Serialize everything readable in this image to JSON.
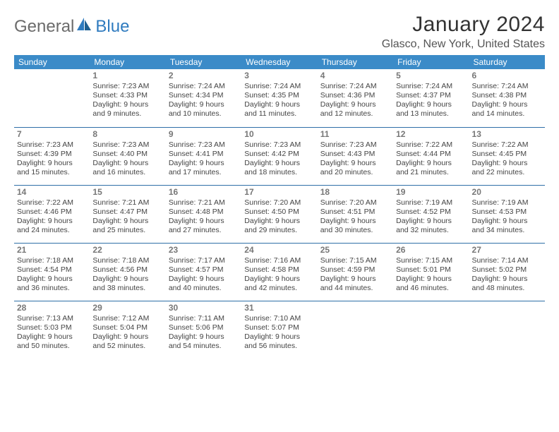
{
  "brand": {
    "part1": "General",
    "part2": "Blue"
  },
  "title": "January 2024",
  "location": "Glasco, New York, United States",
  "header_bg": "#3b8bc8",
  "header_fg": "#ffffff",
  "row_border": "#2f6fa8",
  "text_color": "#444444",
  "daynum_color": "#777777",
  "font_family": "Arial, Helvetica, sans-serif",
  "cell_fontsize_pt": 8,
  "header_fontsize_pt": 9,
  "title_fontsize_pt": 22,
  "location_fontsize_pt": 12,
  "day_headers": [
    "Sunday",
    "Monday",
    "Tuesday",
    "Wednesday",
    "Thursday",
    "Friday",
    "Saturday"
  ],
  "weeks": [
    [
      {
        "n": "",
        "sr": "",
        "ss": "",
        "d1": "",
        "d2": ""
      },
      {
        "n": "1",
        "sr": "Sunrise: 7:23 AM",
        "ss": "Sunset: 4:33 PM",
        "d1": "Daylight: 9 hours",
        "d2": "and 9 minutes."
      },
      {
        "n": "2",
        "sr": "Sunrise: 7:24 AM",
        "ss": "Sunset: 4:34 PM",
        "d1": "Daylight: 9 hours",
        "d2": "and 10 minutes."
      },
      {
        "n": "3",
        "sr": "Sunrise: 7:24 AM",
        "ss": "Sunset: 4:35 PM",
        "d1": "Daylight: 9 hours",
        "d2": "and 11 minutes."
      },
      {
        "n": "4",
        "sr": "Sunrise: 7:24 AM",
        "ss": "Sunset: 4:36 PM",
        "d1": "Daylight: 9 hours",
        "d2": "and 12 minutes."
      },
      {
        "n": "5",
        "sr": "Sunrise: 7:24 AM",
        "ss": "Sunset: 4:37 PM",
        "d1": "Daylight: 9 hours",
        "d2": "and 13 minutes."
      },
      {
        "n": "6",
        "sr": "Sunrise: 7:24 AM",
        "ss": "Sunset: 4:38 PM",
        "d1": "Daylight: 9 hours",
        "d2": "and 14 minutes."
      }
    ],
    [
      {
        "n": "7",
        "sr": "Sunrise: 7:23 AM",
        "ss": "Sunset: 4:39 PM",
        "d1": "Daylight: 9 hours",
        "d2": "and 15 minutes."
      },
      {
        "n": "8",
        "sr": "Sunrise: 7:23 AM",
        "ss": "Sunset: 4:40 PM",
        "d1": "Daylight: 9 hours",
        "d2": "and 16 minutes."
      },
      {
        "n": "9",
        "sr": "Sunrise: 7:23 AM",
        "ss": "Sunset: 4:41 PM",
        "d1": "Daylight: 9 hours",
        "d2": "and 17 minutes."
      },
      {
        "n": "10",
        "sr": "Sunrise: 7:23 AM",
        "ss": "Sunset: 4:42 PM",
        "d1": "Daylight: 9 hours",
        "d2": "and 18 minutes."
      },
      {
        "n": "11",
        "sr": "Sunrise: 7:23 AM",
        "ss": "Sunset: 4:43 PM",
        "d1": "Daylight: 9 hours",
        "d2": "and 20 minutes."
      },
      {
        "n": "12",
        "sr": "Sunrise: 7:22 AM",
        "ss": "Sunset: 4:44 PM",
        "d1": "Daylight: 9 hours",
        "d2": "and 21 minutes."
      },
      {
        "n": "13",
        "sr": "Sunrise: 7:22 AM",
        "ss": "Sunset: 4:45 PM",
        "d1": "Daylight: 9 hours",
        "d2": "and 22 minutes."
      }
    ],
    [
      {
        "n": "14",
        "sr": "Sunrise: 7:22 AM",
        "ss": "Sunset: 4:46 PM",
        "d1": "Daylight: 9 hours",
        "d2": "and 24 minutes."
      },
      {
        "n": "15",
        "sr": "Sunrise: 7:21 AM",
        "ss": "Sunset: 4:47 PM",
        "d1": "Daylight: 9 hours",
        "d2": "and 25 minutes."
      },
      {
        "n": "16",
        "sr": "Sunrise: 7:21 AM",
        "ss": "Sunset: 4:48 PM",
        "d1": "Daylight: 9 hours",
        "d2": "and 27 minutes."
      },
      {
        "n": "17",
        "sr": "Sunrise: 7:20 AM",
        "ss": "Sunset: 4:50 PM",
        "d1": "Daylight: 9 hours",
        "d2": "and 29 minutes."
      },
      {
        "n": "18",
        "sr": "Sunrise: 7:20 AM",
        "ss": "Sunset: 4:51 PM",
        "d1": "Daylight: 9 hours",
        "d2": "and 30 minutes."
      },
      {
        "n": "19",
        "sr": "Sunrise: 7:19 AM",
        "ss": "Sunset: 4:52 PM",
        "d1": "Daylight: 9 hours",
        "d2": "and 32 minutes."
      },
      {
        "n": "20",
        "sr": "Sunrise: 7:19 AM",
        "ss": "Sunset: 4:53 PM",
        "d1": "Daylight: 9 hours",
        "d2": "and 34 minutes."
      }
    ],
    [
      {
        "n": "21",
        "sr": "Sunrise: 7:18 AM",
        "ss": "Sunset: 4:54 PM",
        "d1": "Daylight: 9 hours",
        "d2": "and 36 minutes."
      },
      {
        "n": "22",
        "sr": "Sunrise: 7:18 AM",
        "ss": "Sunset: 4:56 PM",
        "d1": "Daylight: 9 hours",
        "d2": "and 38 minutes."
      },
      {
        "n": "23",
        "sr": "Sunrise: 7:17 AM",
        "ss": "Sunset: 4:57 PM",
        "d1": "Daylight: 9 hours",
        "d2": "and 40 minutes."
      },
      {
        "n": "24",
        "sr": "Sunrise: 7:16 AM",
        "ss": "Sunset: 4:58 PM",
        "d1": "Daylight: 9 hours",
        "d2": "and 42 minutes."
      },
      {
        "n": "25",
        "sr": "Sunrise: 7:15 AM",
        "ss": "Sunset: 4:59 PM",
        "d1": "Daylight: 9 hours",
        "d2": "and 44 minutes."
      },
      {
        "n": "26",
        "sr": "Sunrise: 7:15 AM",
        "ss": "Sunset: 5:01 PM",
        "d1": "Daylight: 9 hours",
        "d2": "and 46 minutes."
      },
      {
        "n": "27",
        "sr": "Sunrise: 7:14 AM",
        "ss": "Sunset: 5:02 PM",
        "d1": "Daylight: 9 hours",
        "d2": "and 48 minutes."
      }
    ],
    [
      {
        "n": "28",
        "sr": "Sunrise: 7:13 AM",
        "ss": "Sunset: 5:03 PM",
        "d1": "Daylight: 9 hours",
        "d2": "and 50 minutes."
      },
      {
        "n": "29",
        "sr": "Sunrise: 7:12 AM",
        "ss": "Sunset: 5:04 PM",
        "d1": "Daylight: 9 hours",
        "d2": "and 52 minutes."
      },
      {
        "n": "30",
        "sr": "Sunrise: 7:11 AM",
        "ss": "Sunset: 5:06 PM",
        "d1": "Daylight: 9 hours",
        "d2": "and 54 minutes."
      },
      {
        "n": "31",
        "sr": "Sunrise: 7:10 AM",
        "ss": "Sunset: 5:07 PM",
        "d1": "Daylight: 9 hours",
        "d2": "and 56 minutes."
      },
      {
        "n": "",
        "sr": "",
        "ss": "",
        "d1": "",
        "d2": ""
      },
      {
        "n": "",
        "sr": "",
        "ss": "",
        "d1": "",
        "d2": ""
      },
      {
        "n": "",
        "sr": "",
        "ss": "",
        "d1": "",
        "d2": ""
      }
    ]
  ]
}
